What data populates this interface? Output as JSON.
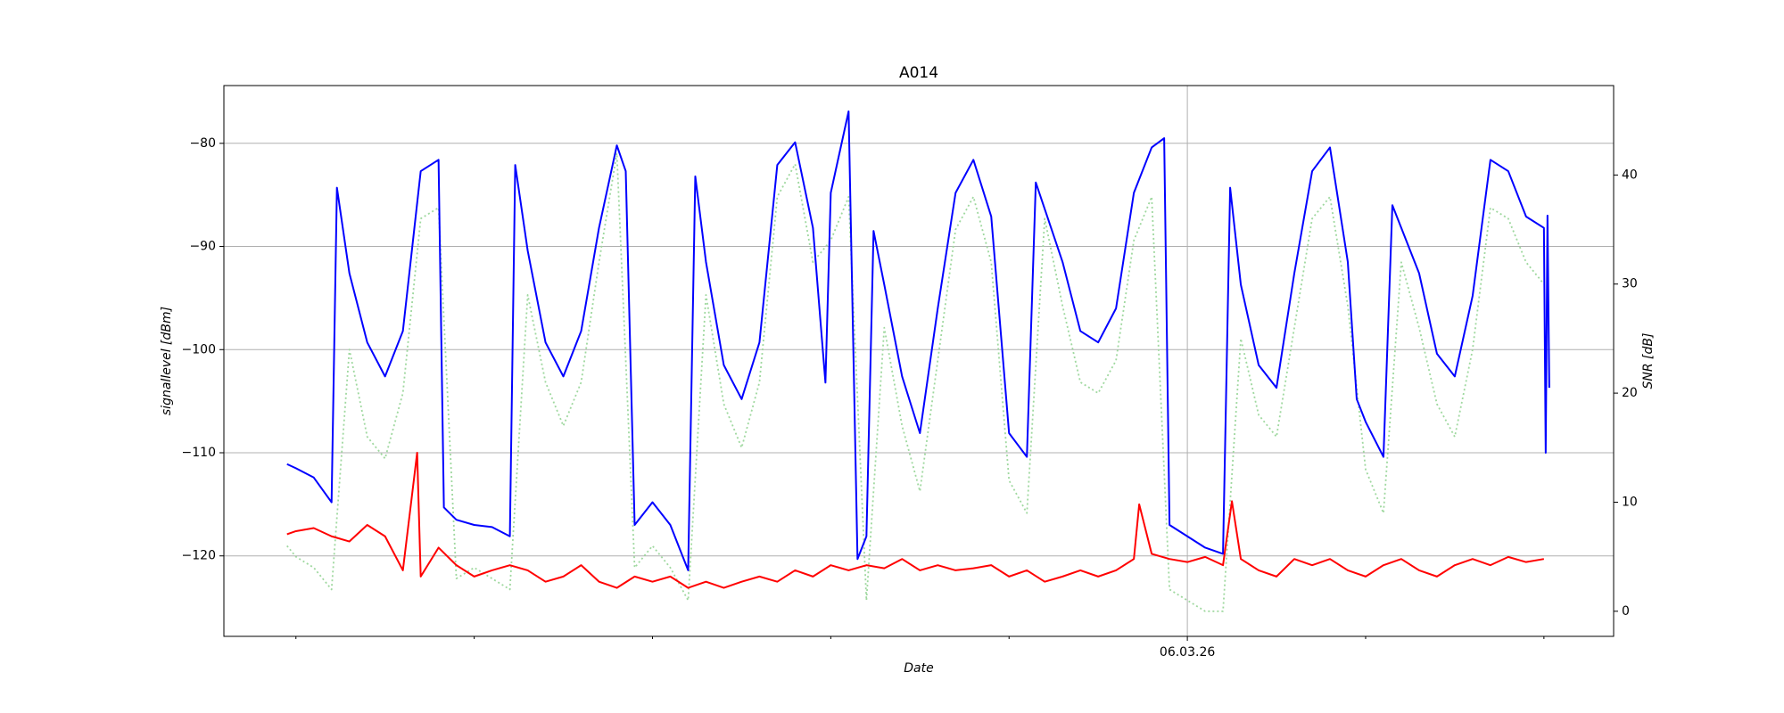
{
  "chart_data": {
    "type": "line",
    "title": "A014",
    "xlabel": "Date",
    "ylabel": "signallevel [dBm]",
    "y2label": "SNR [dB]",
    "xlim": [
      -0.404,
      7.391
    ],
    "xticks": [
      {
        "value": 5,
        "label": "06.03.26"
      }
    ],
    "minor_xticks": [
      0,
      1,
      2,
      3,
      4,
      6,
      7
    ],
    "ylim": [
      -127.8,
      -74.4
    ],
    "yticks": [
      {
        "value": -120,
        "label": "−120"
      },
      {
        "value": -110,
        "label": "−110"
      },
      {
        "value": -100,
        "label": "−100"
      },
      {
        "value": -90,
        "label": "−90"
      },
      {
        "value": -80,
        "label": "−80"
      }
    ],
    "y2lim": [
      -2.3,
      48.2
    ],
    "y2ticks": [
      0,
      10,
      20,
      30,
      40
    ],
    "grid": true,
    "series": [
      {
        "color": "#9fd89f",
        "linestyle": "dotted",
        "axis": "y2",
        "x": [
          -0.05,
          0,
          0.1,
          0.2,
          0.3,
          0.4,
          0.5,
          0.6,
          0.7,
          0.8,
          0.9,
          1.0,
          1.1,
          1.2,
          1.3,
          1.4,
          1.5,
          1.6,
          1.7,
          1.8,
          1.9,
          2.0,
          2.1,
          2.2,
          2.3,
          2.4,
          2.5,
          2.6,
          2.7,
          2.8,
          2.9,
          3.0,
          3.1,
          3.2,
          3.3,
          3.4,
          3.5,
          3.6,
          3.7,
          3.8,
          3.9,
          4.0,
          4.1,
          4.2,
          4.3,
          4.4,
          4.5,
          4.6,
          4.7,
          4.8,
          4.9,
          5.0,
          5.1,
          5.2,
          5.3,
          5.4,
          5.5,
          5.6,
          5.7,
          5.8,
          5.9,
          6.0,
          6.1,
          6.2,
          6.3,
          6.4,
          6.5,
          6.6,
          6.7,
          6.8,
          6.9,
          7.0
        ],
        "values": [
          6,
          5,
          4,
          2,
          24,
          16,
          14,
          20,
          36,
          37,
          3,
          4,
          3,
          2,
          29,
          21,
          17,
          21,
          32,
          42,
          4,
          6,
          4,
          1,
          29,
          19,
          15,
          21,
          38,
          41,
          32,
          34,
          38,
          1,
          26,
          17,
          11,
          23,
          35,
          38,
          32,
          12,
          9,
          36,
          28,
          21,
          20,
          23,
          34,
          38,
          2,
          1,
          0,
          0,
          25,
          18,
          16,
          26,
          36,
          38,
          28,
          13,
          9,
          32,
          26,
          19,
          16,
          24,
          37,
          36,
          32,
          30
        ]
      },
      {
        "color": "#0000ff",
        "linestyle": "solid",
        "axis": "y",
        "x": [
          -0.05,
          0,
          0.1,
          0.2,
          0.23,
          0.3,
          0.4,
          0.5,
          0.6,
          0.7,
          0.8,
          0.83,
          0.9,
          1.0,
          1.1,
          1.2,
          1.23,
          1.3,
          1.4,
          1.5,
          1.6,
          1.7,
          1.8,
          1.85,
          1.9,
          2.0,
          2.1,
          2.2,
          2.24,
          2.3,
          2.4,
          2.5,
          2.6,
          2.7,
          2.8,
          2.9,
          2.97,
          3.0,
          3.1,
          3.15,
          3.2,
          3.24,
          3.3,
          3.4,
          3.5,
          3.6,
          3.7,
          3.8,
          3.9,
          4.0,
          4.1,
          4.15,
          4.3,
          4.4,
          4.5,
          4.6,
          4.7,
          4.8,
          4.87,
          4.9,
          5.0,
          5.1,
          5.2,
          5.24,
          5.3,
          5.4,
          5.5,
          5.6,
          5.7,
          5.8,
          5.9,
          5.95,
          6.0,
          6.1,
          6.15,
          6.3,
          6.4,
          6.5,
          6.6,
          6.7,
          6.8,
          6.9,
          7.0,
          7.01,
          7.02,
          7.03
        ],
        "values": [
          -111.1,
          -111.5,
          -112.4,
          -114.8,
          -84.3,
          -92.6,
          -99.3,
          -102.6,
          -98.2,
          -82.7,
          -81.6,
          -115.3,
          -116.5,
          -117,
          -117.2,
          -118.1,
          -82.1,
          -90.4,
          -99.3,
          -102.6,
          -98.2,
          -88.2,
          -80.2,
          -82.7,
          -117,
          -114.8,
          -117,
          -121.4,
          -83.2,
          -91.5,
          -101.5,
          -104.8,
          -99.3,
          -82.1,
          -79.9,
          -88.2,
          -103.2,
          -84.8,
          -76.9,
          -120.3,
          -118.1,
          -88.5,
          -93.7,
          -102.6,
          -108.1,
          -96,
          -84.8,
          -81.6,
          -87.1,
          -108.1,
          -110.4,
          -83.8,
          -91.5,
          -98.2,
          -99.3,
          -96,
          -84.8,
          -80.4,
          -79.5,
          -117,
          -118.1,
          -119.2,
          -119.8,
          -84.3,
          -93.7,
          -101.5,
          -103.7,
          -92.6,
          -82.7,
          -80.4,
          -91.5,
          -104.8,
          -107,
          -110.4,
          -86,
          -92.6,
          -100.4,
          -102.6,
          -94.8,
          -81.6,
          -82.7,
          -87.1,
          -88.2,
          -110,
          -87,
          -103.7
        ]
      },
      {
        "color": "#ff0000",
        "linestyle": "solid",
        "axis": "y",
        "x": [
          -0.05,
          0,
          0.1,
          0.2,
          0.3,
          0.4,
          0.5,
          0.6,
          0.68,
          0.7,
          0.8,
          0.9,
          1.0,
          1.1,
          1.2,
          1.3,
          1.4,
          1.5,
          1.6,
          1.7,
          1.8,
          1.9,
          2.0,
          2.1,
          2.2,
          2.3,
          2.4,
          2.5,
          2.6,
          2.7,
          2.8,
          2.9,
          3.0,
          3.1,
          3.2,
          3.3,
          3.4,
          3.5,
          3.6,
          3.7,
          3.8,
          3.9,
          4.0,
          4.1,
          4.2,
          4.3,
          4.4,
          4.5,
          4.6,
          4.7,
          4.73,
          4.8,
          4.9,
          5.0,
          5.1,
          5.2,
          5.25,
          5.3,
          5.4,
          5.5,
          5.6,
          5.7,
          5.8,
          5.9,
          6.0,
          6.1,
          6.2,
          6.3,
          6.4,
          6.5,
          6.6,
          6.7,
          6.8,
          6.9,
          7.0
        ],
        "values": [
          -117.9,
          -117.6,
          -117.3,
          -118.1,
          -118.6,
          -117,
          -118.1,
          -121.4,
          -110,
          -122,
          -119.2,
          -120.9,
          -122,
          -121.4,
          -120.9,
          -121.4,
          -122.5,
          -122,
          -120.9,
          -122.5,
          -123.1,
          -122,
          -122.5,
          -122,
          -123.1,
          -122.5,
          -123.1,
          -122.5,
          -122,
          -122.5,
          -121.4,
          -122,
          -120.9,
          -121.4,
          -120.9,
          -121.2,
          -120.3,
          -121.4,
          -120.9,
          -121.4,
          -121.2,
          -120.9,
          -122,
          -121.4,
          -122.5,
          -122,
          -121.4,
          -122,
          -121.4,
          -120.3,
          -115,
          -119.8,
          -120.3,
          -120.6,
          -120.1,
          -120.9,
          -114.7,
          -120.3,
          -121.4,
          -122,
          -120.3,
          -120.9,
          -120.3,
          -121.4,
          -122,
          -120.9,
          -120.3,
          -121.4,
          -122,
          -120.9,
          -120.3,
          -120.9,
          -120.1,
          -120.6,
          -120.3
        ]
      }
    ]
  }
}
